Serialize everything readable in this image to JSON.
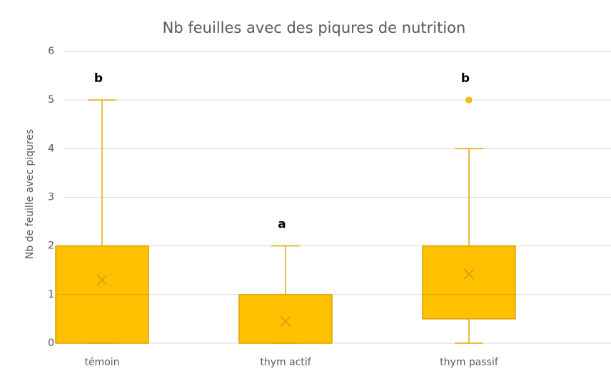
{
  "chart_data": {
    "type": "box",
    "title": "Nb feuilles avec des piqures de nutrition",
    "y_label": "Nb de feuille avec piqures",
    "categories": [
      "témoin",
      "thym actif",
      "thym passif"
    ],
    "boxes": [
      {
        "min": 0,
        "q1": 0,
        "median": 1,
        "q3": 2,
        "max": 5,
        "mean": 1.3,
        "outliers": []
      },
      {
        "min": 0,
        "q1": 0,
        "median": 0,
        "q3": 1,
        "max": 2,
        "mean": 0.45,
        "outliers": []
      },
      {
        "min": 0,
        "q1": 0.5,
        "median": 1,
        "q3": 2,
        "max": 4,
        "mean": 1.42,
        "outliers": [
          5
        ]
      }
    ],
    "annotations": [
      "b",
      "a",
      "b"
    ],
    "color": "#ffc000",
    "ylim": [
      0,
      6
    ],
    "yticks": [
      0,
      1,
      2,
      3,
      4,
      5,
      6
    ],
    "grid": true
  }
}
